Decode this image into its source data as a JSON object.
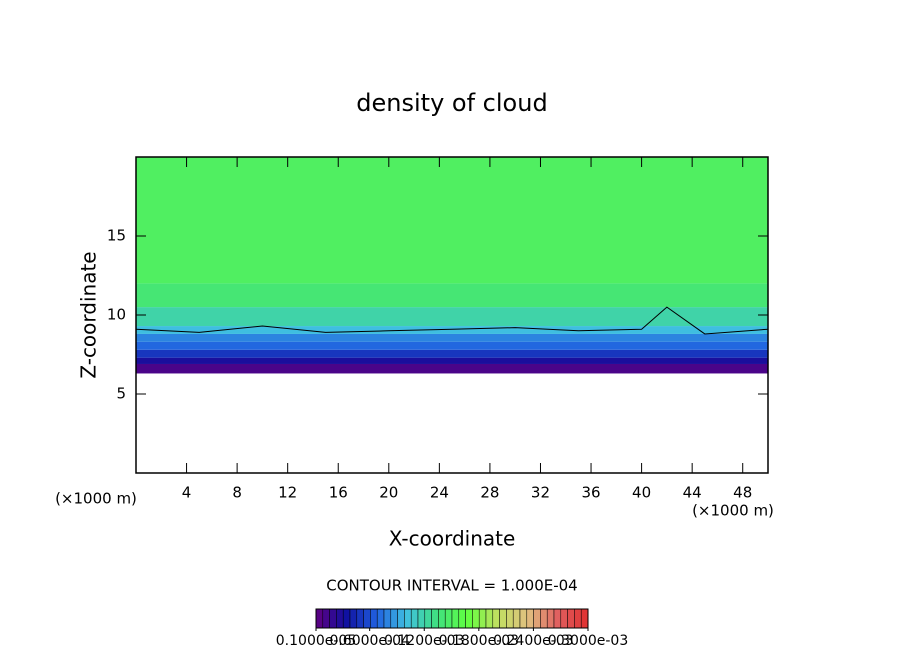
{
  "chart_data": {
    "type": "contour",
    "title": "density of cloud",
    "x_label": "X-coordinate",
    "y_label": "Z-coordinate",
    "x_unit": "(×1000 m)",
    "y_unit": "(×1000 m)",
    "xlim": [
      0,
      50
    ],
    "ylim": [
      0,
      20
    ],
    "xticks": [
      4,
      8,
      12,
      16,
      20,
      24,
      28,
      32,
      36,
      40,
      44,
      48
    ],
    "yticks": [
      5,
      10,
      15
    ],
    "z_edges": [
      6.3,
      6.9,
      7.3,
      7.8,
      8.3,
      8.8,
      9.3,
      10.5,
      12,
      20
    ],
    "values": [
      1e-05,
      3e-05,
      5e-05,
      7e-05,
      8e-05,
      0.0001,
      0.00012,
      0.00014,
      0.00015
    ],
    "colormap": [
      "#600080",
      "#1010a0",
      "#2060e0",
      "#40c0e0",
      "#40e080",
      "#60ff40",
      "#c0e060",
      "#e0c080",
      "#e06060",
      "#e03030"
    ],
    "contour": {
      "x": [
        0,
        5,
        10,
        15,
        20,
        25,
        30,
        35,
        40,
        42,
        45,
        50
      ],
      "z": [
        9.1,
        8.9,
        9.3,
        8.9,
        9.0,
        9.1,
        9.2,
        9.0,
        9.1,
        10.5,
        8.8,
        9.1
      ]
    },
    "contour_interval": "CONTOUR INTERVAL = 1.000E-04",
    "colorbar": {
      "lim": [
        1e-06,
        0.0003
      ],
      "ticks": [
        {
          "value": 1e-06,
          "label": "0.1000e-05"
        },
        {
          "value": 6e-05,
          "label": "0.6000e-04"
        },
        {
          "value": 0.00012,
          "label": "0.1200e-03"
        },
        {
          "value": 0.00018,
          "label": "0.1800e-03"
        },
        {
          "value": 0.00024,
          "label": "0.2400e-03"
        },
        {
          "value": 0.0003,
          "label": "0.3000e-03"
        }
      ]
    }
  }
}
